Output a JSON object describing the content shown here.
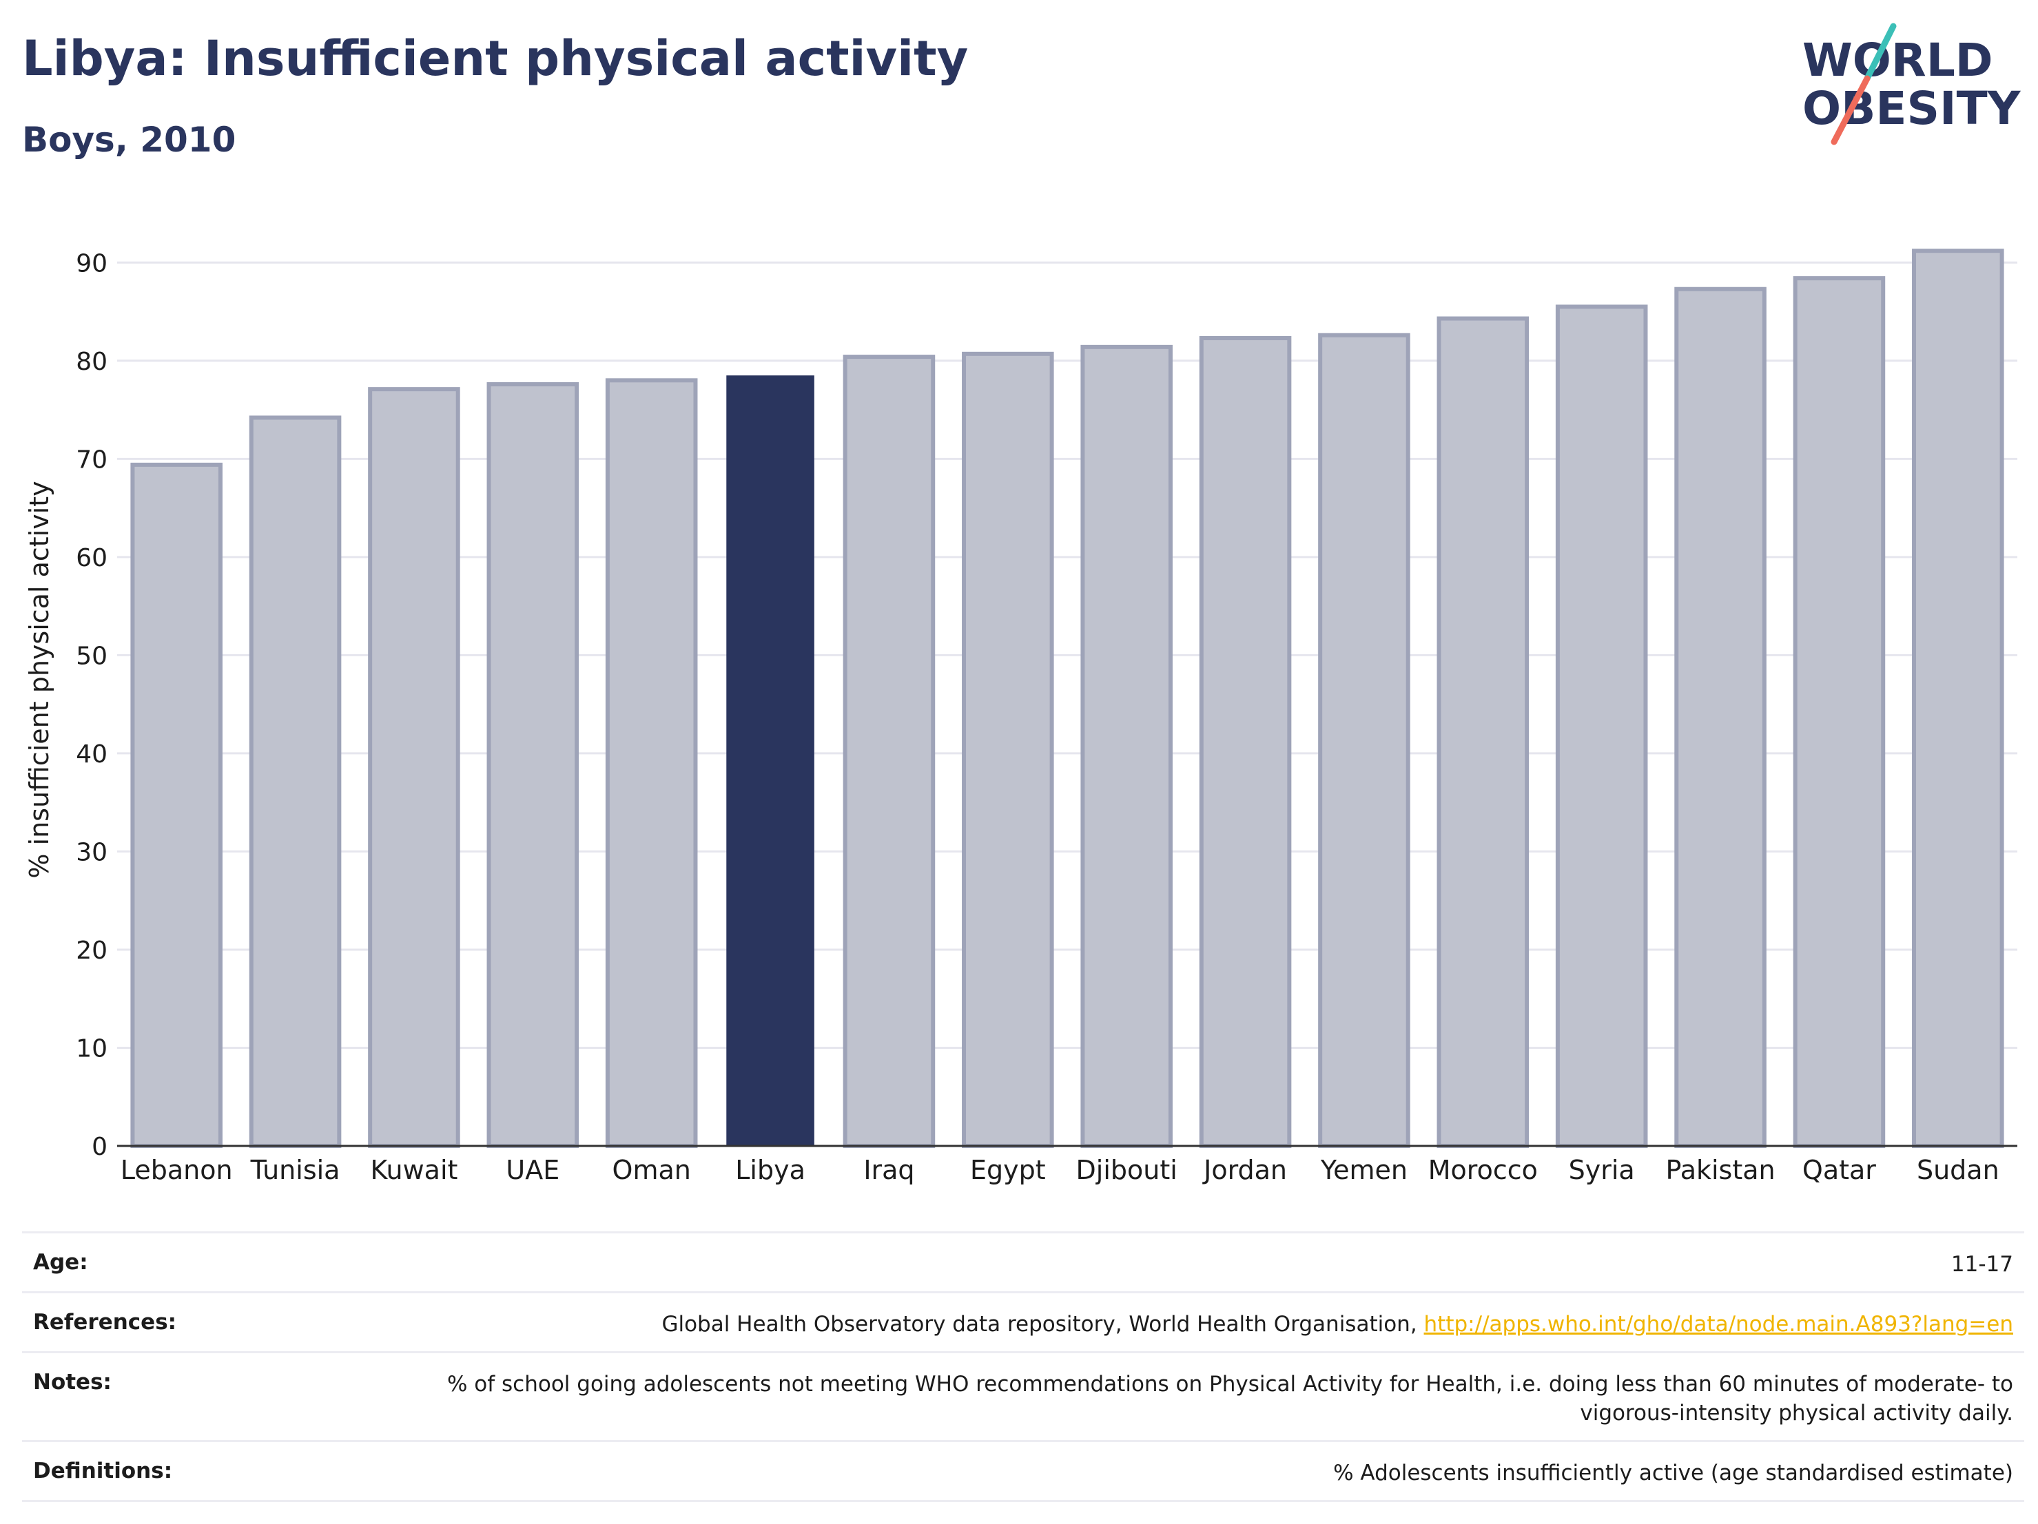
{
  "header": {
    "title": "Libya: Insufficient physical activity",
    "subtitle": "Boys, 2010"
  },
  "logo": {
    "line1": "WORLD",
    "line2": "OBESITY",
    "accent_teal": "#3bbfb7",
    "accent_coral": "#ef6b5b"
  },
  "colors": {
    "highlight": "#2a355e",
    "bar": "#bfc2ce",
    "bar_border": "#9ea3b8",
    "grid": "#e6e6ee",
    "axis": "#333333"
  },
  "chart_data": {
    "type": "bar",
    "title": "Libya: Insufficient physical activity",
    "subtitle": "Boys, 2010",
    "ylabel": "% insufficient physical activity",
    "xlabel": "",
    "ylim": [
      0,
      95
    ],
    "yticks": [
      0,
      10,
      20,
      30,
      40,
      50,
      60,
      70,
      80,
      90
    ],
    "grid": true,
    "highlight": "Libya",
    "categories": [
      "Lebanon",
      "Tunisia",
      "Kuwait",
      "UAE",
      "Oman",
      "Libya",
      "Iraq",
      "Egypt",
      "Djibouti",
      "Jordan",
      "Yemen",
      "Morocco",
      "Syria",
      "Pakistan",
      "Qatar",
      "Sudan"
    ],
    "values": [
      69.4,
      74.2,
      77.1,
      77.6,
      78.0,
      78.5,
      80.4,
      80.7,
      81.4,
      82.3,
      82.6,
      84.3,
      85.5,
      87.3,
      88.4,
      91.2
    ]
  },
  "info": {
    "age_label": "Age:",
    "age_value": "11-17",
    "references_label": "References:",
    "references_text": "Global Health Observatory data repository, World Health Organisation, ",
    "references_link": "http://apps.who.int/gho/data/node.main.A893?lang=en",
    "notes_label": "Notes:",
    "notes_value": "% of school going adolescents not meeting WHO recommendations on Physical Activity for Health, i.e. doing less than 60 minutes of moderate- to vigorous-intensity physical activity daily.",
    "definitions_label": "Definitions:",
    "definitions_value": "% Adolescents insufficiently active (age standardised estimate)"
  }
}
